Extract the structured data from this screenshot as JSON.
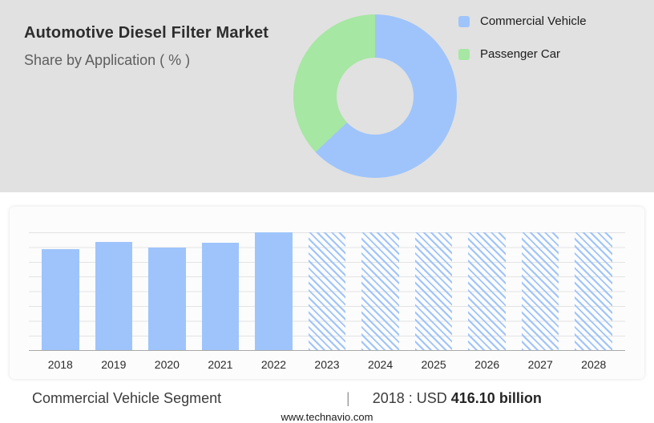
{
  "header": {
    "title": "Automotive Diesel Filter Market",
    "subtitle": "Share by Application ( % )"
  },
  "colors": {
    "panel_gray": "#e1e1e1",
    "commercial_blue": "#9ec4fb",
    "passenger_green": "#a6e7a3"
  },
  "donut": {
    "type": "donut",
    "segments": [
      {
        "label": "Commercial Vehicle",
        "pct": 63,
        "color": "#9ec4fb"
      },
      {
        "label": "Passenger Car",
        "pct": 37,
        "color": "#a6e7a3"
      }
    ]
  },
  "legend": {
    "items": [
      {
        "label": "Commercial Vehicle",
        "color": "#9ec4fb"
      },
      {
        "label": "Passenger Car",
        "color": "#a6e7a3"
      }
    ]
  },
  "chart_data": {
    "type": "bar",
    "categories": [
      "2018",
      "2019",
      "2020",
      "2021",
      "2022",
      "2023",
      "2024",
      "2025",
      "2026",
      "2027",
      "2028"
    ],
    "values_height_pct": [
      86,
      92,
      87,
      91,
      100,
      100,
      100,
      100,
      100,
      100,
      100
    ],
    "values_est_usd_billion": [
      416.1,
      445,
      421,
      440,
      484,
      null,
      null,
      null,
      null,
      null,
      null
    ],
    "hatched": [
      false,
      false,
      false,
      false,
      false,
      true,
      true,
      true,
      true,
      true,
      true
    ],
    "bar_color": "#9ec4fb",
    "hatch_color": "#9ec4fb",
    "annotation": {
      "year": "2018",
      "value": "USD 416.10 billion"
    },
    "grid": true,
    "legend_position": "none",
    "xlabel": "",
    "ylabel": ""
  },
  "caption": {
    "segment": "Commercial Vehicle Segment",
    "divider": "|",
    "value_prefix": "2018 : USD",
    "value_bold": "416.10 billion"
  },
  "footer": {
    "website": "www.technavio.com"
  }
}
